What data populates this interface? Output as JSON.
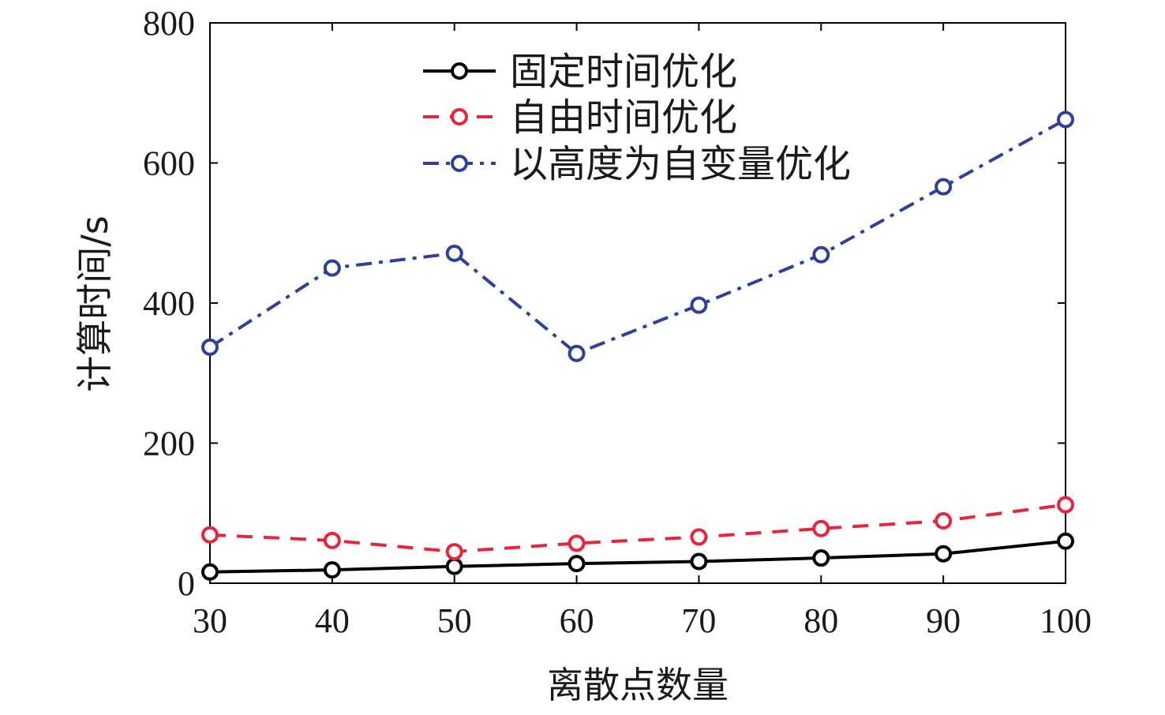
{
  "chart_data": {
    "type": "line",
    "title": "",
    "xlabel": "离散点数量",
    "ylabel": "计算时间/s",
    "x": [
      30,
      40,
      50,
      60,
      70,
      80,
      90,
      100
    ],
    "x_ticks": [
      "30",
      "40",
      "50",
      "60",
      "70",
      "80",
      "90",
      "100"
    ],
    "xlim": [
      30,
      100
    ],
    "ylim": [
      0,
      800
    ],
    "y_ticks": [
      0,
      200,
      400,
      600,
      800
    ],
    "grid": false,
    "legend_position": "top-center",
    "series": [
      {
        "name": "固定时间优化",
        "color": "#000000",
        "line_style": "solid",
        "marker": "circle",
        "values": [
          16,
          19,
          24,
          28,
          31,
          36,
          42,
          60
        ]
      },
      {
        "name": "自由时间优化",
        "color": "#e8233a",
        "line_style": "dashed",
        "marker": "circle",
        "values": [
          69,
          61,
          45,
          57,
          66,
          78,
          89,
          112
        ]
      },
      {
        "name": "以高度为自变量优化",
        "color": "#2e3f9e",
        "line_style": "dash-dot",
        "marker": "circle",
        "values": [
          337,
          450,
          471,
          328,
          397,
          469,
          566,
          662
        ]
      }
    ]
  }
}
